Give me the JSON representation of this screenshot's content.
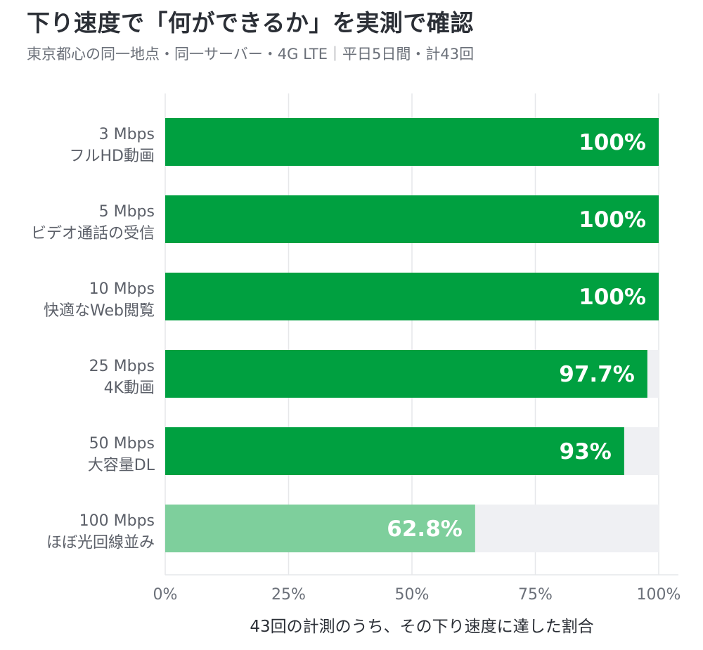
{
  "title": "下り速度で「何ができるか」を実測で確認",
  "subtitle": "東京都心の同一地点・同一サーバー・4G LTE｜平日5日間・計43回",
  "chart_data": {
    "type": "bar",
    "orientation": "horizontal",
    "categories": [
      [
        "3 Mbps",
        "フルHD動画"
      ],
      [
        "5 Mbps",
        "ビデオ通話の受信"
      ],
      [
        "10 Mbps",
        "快適なWeb閲覧"
      ],
      [
        "25 Mbps",
        "4K動画"
      ],
      [
        "50 Mbps",
        "大容量DL"
      ],
      [
        "100 Mbps",
        "ほぼ光回線並み"
      ]
    ],
    "values": [
      100,
      100,
      100,
      97.7,
      93,
      62.8
    ],
    "value_labels": [
      "100%",
      "100%",
      "100%",
      "97.7%",
      "93%",
      "62.8%"
    ],
    "xlabel": "43回の計測のうち、その下り速度に達した割合",
    "ylabel": "",
    "xlim": [
      0,
      100
    ],
    "xticks": [
      0,
      25,
      50,
      75,
      100
    ],
    "xtick_labels": [
      "0%",
      "25%",
      "50%",
      "75%",
      "100%"
    ],
    "grid": true,
    "colors": {
      "bar": "#00a040",
      "bar_highlight": "#7ecf9c",
      "track": "#eff0f3",
      "grid": "#e6e7ea"
    },
    "highlight_index": 5
  }
}
